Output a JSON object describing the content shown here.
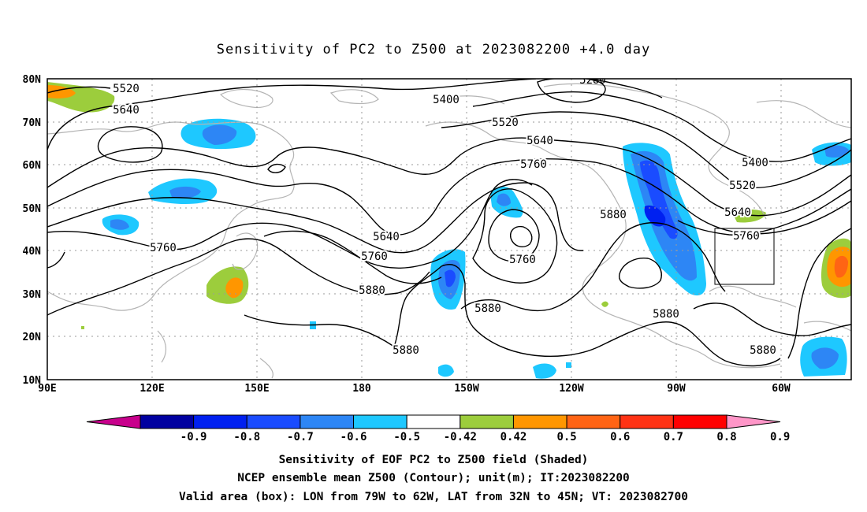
{
  "title": "Sensitivity of PC2 to Z500 at 2023082200 +4.0 day",
  "map": {
    "lat_labels": [
      "80N",
      "70N",
      "60N",
      "50N",
      "40N",
      "30N",
      "20N",
      "10N"
    ],
    "lon_labels": [
      "90E",
      "120E",
      "150E",
      "180",
      "150W",
      "120W",
      "90W",
      "60W"
    ],
    "lon_range_deg_east": [
      90,
      320
    ],
    "lat_range": [
      10,
      80
    ],
    "grid": "dotted",
    "contour_labels": [
      "5280",
      "5400",
      "5400",
      "5520",
      "5520",
      "5520",
      "5640",
      "5640",
      "5640",
      "5640",
      "5760",
      "5760",
      "5760",
      "5760",
      "5760",
      "5880",
      "5880",
      "5880",
      "5880",
      "5880",
      "5880"
    ],
    "valid_box": {
      "lon": [
        "79W",
        "62W"
      ],
      "lat": [
        "32N",
        "45N"
      ]
    }
  },
  "colorbar": {
    "colors": [
      "#c8008c",
      "#0000a0",
      "#0020f0",
      "#1a4cff",
      "#2d86f5",
      "#1ec8ff",
      "#ffffff",
      "#9ccd3c",
      "#ff9600",
      "#ff6414",
      "#ff3214",
      "#ff0000",
      "#ff96c8"
    ],
    "tick_labels": [
      "-0.9",
      "-0.8",
      "-0.7",
      "-0.6",
      "-0.5",
      "-0.42",
      "0.42",
      "0.5",
      "0.6",
      "0.7",
      "0.8",
      "0.9"
    ]
  },
  "captions": {
    "line1": "Sensitivity of EOF PC2 to Z500 field (Shaded)",
    "line2": "NCEP ensemble mean Z500 (Contour); unit(m); IT:2023082200",
    "line3": "Valid area (box): LON from 79W to 62W, LAT from 32N to 45N; VT: 2023082700"
  }
}
